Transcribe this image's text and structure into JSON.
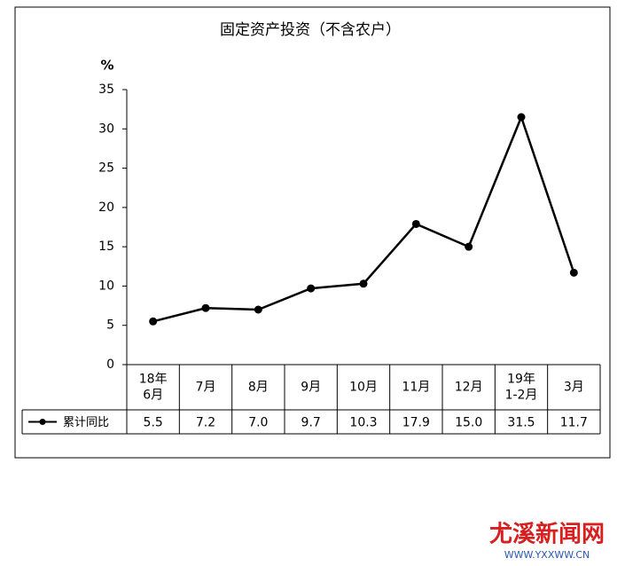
{
  "chart_data": {
    "type": "line",
    "title": "固定资产投资（不含农户）",
    "y_unit": "%",
    "categories": [
      "18年\n6月",
      "7月",
      "8月",
      "9月",
      "10月",
      "11月",
      "12月",
      "19年\n1-2月",
      "3月"
    ],
    "series": [
      {
        "name": "累计同比",
        "color": "#000000",
        "values": [
          5.5,
          7.2,
          7.0,
          9.7,
          10.3,
          17.9,
          15.0,
          31.5,
          11.7
        ],
        "value_labels": [
          "5.5",
          "7.2",
          "7.0",
          "9.7",
          "10.3",
          "17.9",
          "15.0",
          "31.5",
          "11.7"
        ]
      }
    ],
    "ylim": [
      0,
      35
    ],
    "yticks": [
      0,
      5,
      10,
      15,
      20,
      25,
      30,
      35
    ],
    "grid": false,
    "data_table": true
  },
  "watermark": {
    "logo": "尤溪新闻网",
    "url": "WWW.YXXWW.CN"
  }
}
